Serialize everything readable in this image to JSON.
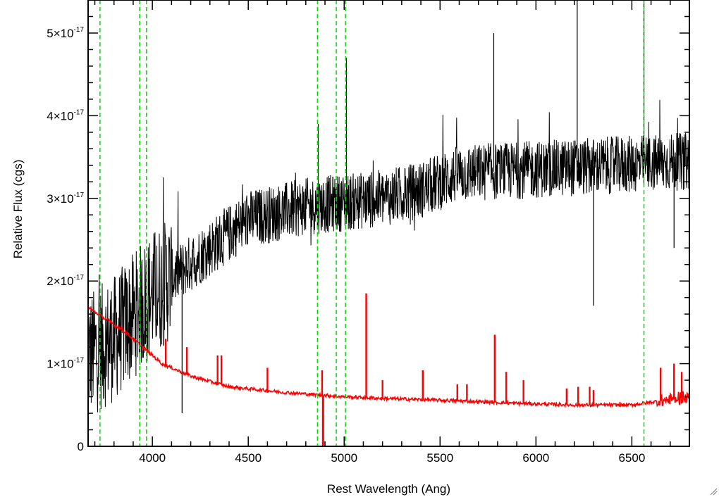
{
  "chart_data": {
    "type": "line",
    "xlabel": "Rest Wavelength (Ang)",
    "ylabel": "Relative Flux (cgs)",
    "xlim": [
      3665,
      6800
    ],
    "ylim": [
      0,
      5.4e-17
    ],
    "x_ticks": [
      4000,
      4500,
      5000,
      5500,
      6000,
      6500
    ],
    "x_tick_labels": [
      "4000",
      "4500",
      "5000",
      "5500",
      "6000",
      "6500"
    ],
    "y_ticks": [
      0,
      1e-17,
      2e-17,
      3e-17,
      4e-17,
      5e-17
    ],
    "y_tick_labels": [
      {
        "mantissa": "0",
        "exp": ""
      },
      {
        "mantissa": "1×10",
        "exp": "-17"
      },
      {
        "mantissa": "2×10",
        "exp": "-17"
      },
      {
        "mantissa": "3×10",
        "exp": "-17"
      },
      {
        "mantissa": "4×10",
        "exp": "-17"
      },
      {
        "mantissa": "5×10",
        "exp": "-17"
      }
    ],
    "grid": false,
    "colors": {
      "spectrum": "#000000",
      "model": "#ff0000",
      "line_markers": "#00dd00"
    },
    "series": [
      {
        "key": "observed",
        "color": "#000000",
        "continuum": [
          [
            3665,
            1.1e-17
          ],
          [
            3800,
            1.3e-17
          ],
          [
            4000,
            1.85e-17
          ],
          [
            4300,
            2.4e-17
          ],
          [
            4500,
            2.75e-17
          ],
          [
            4800,
            2.9e-17
          ],
          [
            5000,
            2.95e-17
          ],
          [
            5200,
            3e-17
          ],
          [
            5400,
            3.1e-17
          ],
          [
            5600,
            3.3e-17
          ],
          [
            6000,
            3.35e-17
          ],
          [
            6400,
            3.4e-17
          ],
          [
            6800,
            3.45e-17
          ]
        ],
        "noise_amplitude": 3.5e-18,
        "spikes": [
          [
            4865,
            3.9e-17
          ],
          [
            5012,
            4.7e-17
          ],
          [
            5780,
            5e-17
          ],
          [
            6215,
            5.4e-17
          ],
          [
            6300,
            1.7e-17
          ],
          [
            6563,
            5.4e-17
          ],
          [
            6720,
            2.4e-17
          ],
          [
            4155,
            4e-18
          ]
        ]
      },
      {
        "key": "model",
        "color": "#ff0000",
        "continuum": [
          [
            3665,
            1.68e-17
          ],
          [
            3750,
            1.55e-17
          ],
          [
            3850,
            1.4e-17
          ],
          [
            3950,
            1.2e-17
          ],
          [
            4050,
            1e-17
          ],
          [
            4200,
            8.5e-18
          ],
          [
            4400,
            7.2e-18
          ],
          [
            4700,
            6.5e-18
          ],
          [
            5000,
            6e-18
          ],
          [
            5200,
            5.8e-18
          ],
          [
            5600,
            5.5e-18
          ],
          [
            5900,
            5.2e-18
          ],
          [
            6200,
            5e-18
          ],
          [
            6500,
            5e-18
          ],
          [
            6800,
            6e-18
          ]
        ],
        "emission_lines": [
          [
            4070,
            1.3e-17
          ],
          [
            4180,
            1.2e-17
          ],
          [
            4340,
            1.1e-17
          ],
          [
            4360,
            1.1e-17
          ],
          [
            4600,
            9.5e-18
          ],
          [
            4885,
            9.2e-18
          ],
          [
            5115,
            1.85e-17
          ],
          [
            5200,
            8e-18
          ],
          [
            5410,
            9.2e-18
          ],
          [
            5590,
            7.5e-18
          ],
          [
            5640,
            7.5e-18
          ],
          [
            5785,
            1.35e-17
          ],
          [
            5845,
            9e-18
          ],
          [
            5935,
            8e-18
          ],
          [
            6160,
            7e-18
          ],
          [
            6220,
            7.2e-18
          ],
          [
            6280,
            7.2e-18
          ],
          [
            6300,
            6.8e-18
          ],
          [
            6650,
            9.5e-18
          ],
          [
            6720,
            1e-17
          ],
          [
            6760,
            9e-18
          ]
        ],
        "absorption_lines": [
          [
            4890,
            0.0
          ]
        ]
      }
    ],
    "vertical_lines": [
      3727,
      3934,
      3969,
      4861,
      4959,
      5007,
      6563
    ]
  }
}
